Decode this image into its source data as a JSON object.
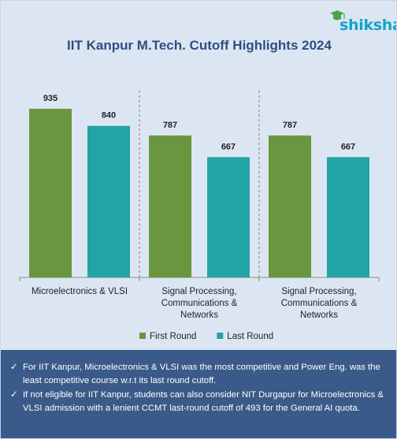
{
  "brand": {
    "name": "shiksha",
    "accent": "#13a3c7"
  },
  "title": "IIT Kanpur M.Tech. Cutoff Highlights 2024",
  "chart_data": {
    "type": "bar",
    "categories": [
      [
        "Microelectronics & VLSI"
      ],
      [
        "Signal Processing,",
        "Communications &",
        "Networks"
      ],
      [
        "Signal Processing,",
        "Communications &",
        "Networks"
      ]
    ],
    "series": [
      {
        "name": "First Round",
        "color": "#6a963f",
        "values": [
          935,
          787,
          787
        ]
      },
      {
        "name": "Last Round",
        "color": "#22a3a5",
        "values": [
          840,
          667,
          667
        ]
      }
    ],
    "ylim": [
      0,
      1000
    ],
    "grid": false,
    "legend": "bottom",
    "data_labels": true,
    "group_separators": "dashed"
  },
  "notes": {
    "check_glyph": "✓",
    "items": [
      "For IIT Kanpur, Microelectronics & VLSI was the most competitive and Power Eng. was the least competitive course w.r.t its last round cutoff.",
      "If not eligible for IIT Kanpur, students can also consider NIT Durgapur for Microelectronics & VLSI admission with a lenient CCMT last-round cutoff of 493 for the General AI quota."
    ]
  }
}
